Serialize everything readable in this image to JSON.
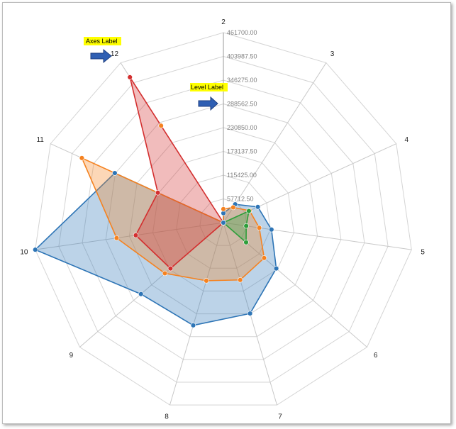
{
  "chart_data": {
    "type": "radar",
    "title": "",
    "axes": [
      "2",
      "3",
      "4",
      "5",
      "6",
      "7",
      "8",
      "9",
      "10",
      "11",
      "12"
    ],
    "levels": [
      "57712.50",
      "115425.00",
      "173137.50",
      "230850.00",
      "288562.50",
      "346275.00",
      "403987.50",
      "461700.00"
    ],
    "max": 461700,
    "series": [
      {
        "color": "#2e75b6",
        "fill": "rgba(46,117,182,0.32)",
        "values": [
          23000,
          53000,
          92000,
          118000,
          170000,
          230000,
          260000,
          265000,
          461700,
          290000,
          0
        ]
      },
      {
        "color": "#f58220",
        "fill": "rgba(245,130,32,0.32)",
        "values": [
          33000,
          44000,
          70000,
          88000,
          131000,
          145000,
          147000,
          188000,
          262000,
          378000,
          0
        ]
      },
      {
        "color": "#d32f2f",
        "fill": "rgba(211,47,47,0.32)",
        "values": [
          0,
          0,
          0,
          0,
          0,
          0,
          0,
          170000,
          215000,
          175000,
          420000
        ]
      },
      {
        "color": "#2e9e3a",
        "fill": "rgba(46,158,58,0.32)",
        "values": [
          0,
          0,
          68000,
          56000,
          73000,
          0,
          0,
          0,
          0,
          0,
          0
        ]
      }
    ],
    "secondary_points": [
      {
        "color": "#2e75b6",
        "values": [
          null,
          null,
          null,
          null,
          null,
          null,
          null,
          null,
          null,
          null,
          0
        ]
      },
      {
        "color": "#f58220",
        "values": [
          null,
          null,
          null,
          null,
          null,
          null,
          null,
          null,
          null,
          null,
          280000
        ]
      },
      {
        "color": "#2e9e3a",
        "values": [
          null,
          null,
          null,
          null,
          null,
          null,
          null,
          null,
          null,
          null,
          null
        ]
      }
    ]
  },
  "callouts": {
    "axes_label": "Axes Label",
    "level_label": "Level Label"
  }
}
